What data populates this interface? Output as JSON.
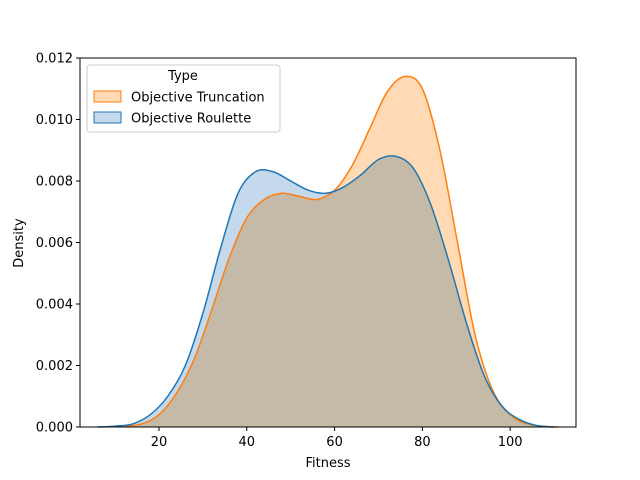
{
  "chart_data": {
    "type": "area",
    "title": "",
    "xlabel": "Fitness",
    "ylabel": "Density",
    "xlim": [
      2,
      115
    ],
    "ylim": [
      0,
      0.012
    ],
    "xticks": [
      20,
      40,
      60,
      80,
      100
    ],
    "xtick_labels": [
      "20",
      "40",
      "60",
      "80",
      "100"
    ],
    "yticks": [
      0,
      0.002,
      0.004,
      0.006,
      0.008,
      0.01,
      0.012
    ],
    "ytick_labels": [
      "0.000",
      "0.002",
      "0.004",
      "0.006",
      "0.008",
      "0.010",
      "0.012"
    ],
    "grid": false,
    "legend": {
      "title": "Type",
      "placement": "top-left"
    },
    "series": [
      {
        "name": "Objective Truncation",
        "color": "#ff7f0e",
        "fill": "#ffdab5",
        "x": [
          12,
          16,
          20,
          24,
          28,
          32,
          36,
          40,
          44,
          48,
          52,
          56,
          60,
          64,
          68,
          72,
          76,
          80,
          84,
          88,
          92,
          96,
          100,
          104,
          108,
          111
        ],
        "y": [
          2e-05,
          0.0001,
          0.0004,
          0.0011,
          0.0022,
          0.0038,
          0.0055,
          0.0068,
          0.0074,
          0.0076,
          0.0075,
          0.0074,
          0.0077,
          0.0085,
          0.0097,
          0.0109,
          0.0114,
          0.011,
          0.009,
          0.006,
          0.003,
          0.0012,
          0.0004,
          0.0001,
          2e-05,
          0.0
        ]
      },
      {
        "name": "Objective Roulette",
        "color": "#1f77b4",
        "fill": "#c5d9ec",
        "x": [
          6,
          10,
          14,
          18,
          22,
          26,
          30,
          34,
          38,
          42,
          46,
          50,
          54,
          58,
          62,
          66,
          70,
          74,
          78,
          82,
          86,
          90,
          94,
          98,
          102,
          106,
          110
        ],
        "y": [
          0.0,
          3e-05,
          0.0001,
          0.0004,
          0.001,
          0.002,
          0.0037,
          0.0058,
          0.0076,
          0.0083,
          0.0083,
          0.008,
          0.0077,
          0.0076,
          0.0078,
          0.0082,
          0.0087,
          0.0088,
          0.0084,
          0.0072,
          0.0054,
          0.0034,
          0.0017,
          0.0007,
          0.00025,
          5e-05,
          0.0
        ]
      }
    ]
  }
}
